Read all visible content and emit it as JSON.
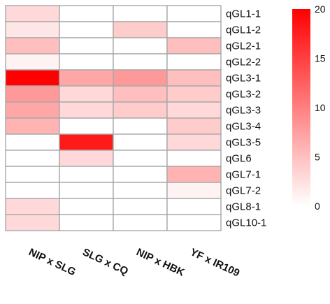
{
  "chart_data": {
    "type": "heatmap",
    "rows": [
      "qGL1-1",
      "qGL1-2",
      "qGL2-1",
      "qGL2-2",
      "qGL3-1",
      "qGL3-2",
      "qGL3-3",
      "qGL3-4",
      "qGL3-5",
      "qGL6",
      "qGL7-1",
      "qGL7-2",
      "qGL8-1",
      "qGL10-1"
    ],
    "columns": [
      "NIP x SLG",
      "SLG x CQ",
      "NIP x HBK",
      "YF x IR109"
    ],
    "values": [
      [
        3,
        0,
        0,
        0
      ],
      [
        2,
        0,
        4,
        0
      ],
      [
        5,
        0,
        0,
        5
      ],
      [
        1,
        0,
        0,
        0
      ],
      [
        20,
        7,
        8,
        5
      ],
      [
        8,
        3,
        5,
        4
      ],
      [
        7,
        3,
        4,
        3
      ],
      [
        6,
        0,
        0,
        4
      ],
      [
        0,
        18,
        0,
        3
      ],
      [
        0,
        3,
        0,
        0
      ],
      [
        0,
        0,
        0,
        6
      ],
      [
        0,
        0,
        0,
        1
      ],
      [
        3,
        0,
        0,
        0
      ],
      [
        3,
        0,
        0,
        0
      ]
    ],
    "color_scale": {
      "min": 0,
      "max": 20,
      "ticks": [
        0,
        5,
        10,
        15,
        20
      ],
      "low_color": "#ffffff",
      "high_color": "#ff0000"
    },
    "grid": true
  }
}
